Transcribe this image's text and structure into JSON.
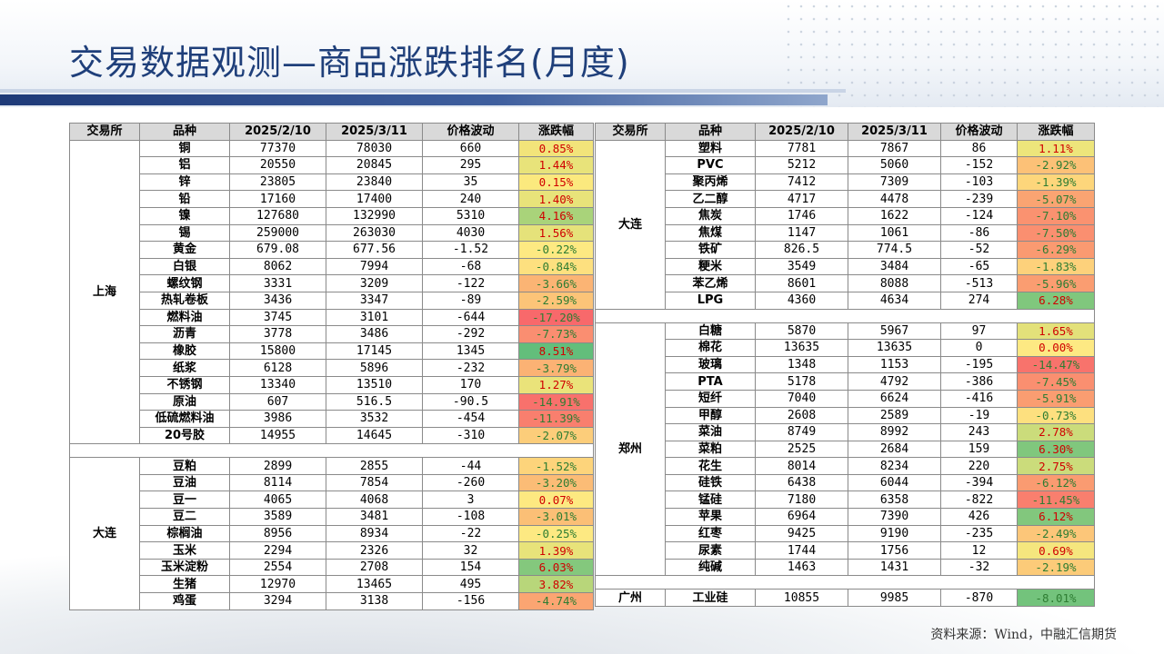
{
  "title": "交易数据观测—商品涨跌排名(月度)",
  "source": "资料来源：Wind，中融汇信期货",
  "headers": [
    "交易所",
    "品种",
    "2025/2/10",
    "2025/3/11",
    "价格波动",
    "涨跌幅"
  ],
  "left_groups": [
    {
      "exchange": "上海",
      "rows": [
        [
          "铜",
          "77370",
          "78030",
          "660",
          "0.85%",
          "#f2e47a"
        ],
        [
          "铝",
          "20550",
          "20845",
          "295",
          "1.44%",
          "#e8e37a"
        ],
        [
          "锌",
          "23805",
          "23840",
          "35",
          "0.15%",
          "#fbe97e"
        ],
        [
          "铅",
          "17160",
          "17400",
          "240",
          "1.40%",
          "#e8e37a"
        ],
        [
          "镍",
          "127680",
          "132990",
          "5310",
          "4.16%",
          "#a9d37a"
        ],
        [
          "锡",
          "259000",
          "263030",
          "4030",
          "1.56%",
          "#e5e27a"
        ],
        [
          "黄金",
          "679.08",
          "677.56",
          "-1.52",
          "-0.22%",
          "#fde982"
        ],
        [
          "白银",
          "8062",
          "7994",
          "-68",
          "-0.84%",
          "#fde07f"
        ],
        [
          "螺纹钢",
          "3331",
          "3209",
          "-122",
          "-3.66%",
          "#fbb474"
        ],
        [
          "热轧卷板",
          "3436",
          "3347",
          "-89",
          "-2.59%",
          "#fcc478"
        ],
        [
          "燃料油",
          "3745",
          "3101",
          "-644",
          "-17.20%",
          "#f8696b"
        ],
        [
          "沥青",
          "3778",
          "3486",
          "-292",
          "-7.73%",
          "#fa8e71"
        ],
        [
          "橡胶",
          "15800",
          "17145",
          "1345",
          "8.51%",
          "#63be7b"
        ],
        [
          "纸浆",
          "6128",
          "5896",
          "-232",
          "-3.79%",
          "#fbb274"
        ],
        [
          "不锈钢",
          "13340",
          "13510",
          "170",
          "1.27%",
          "#eae37a"
        ],
        [
          "原油",
          "607",
          "516.5",
          "-90.5",
          "-14.91%",
          "#f8716c"
        ],
        [
          "低硫燃料油",
          "3986",
          "3532",
          "-454",
          "-11.39%",
          "#f97f6e"
        ],
        [
          "20号胶",
          "14955",
          "14645",
          "-310",
          "-2.07%",
          "#fccd7a"
        ]
      ]
    },
    {
      "exchange": "大连",
      "rows": [
        [
          "豆粕",
          "2899",
          "2855",
          "-44",
          "-1.52%",
          "#fdd47b"
        ],
        [
          "豆油",
          "8114",
          "7854",
          "-260",
          "-3.20%",
          "#fbbc76"
        ],
        [
          "豆一",
          "4065",
          "4068",
          "3",
          "0.07%",
          "#fde981"
        ],
        [
          "豆二",
          "3589",
          "3481",
          "-108",
          "-3.01%",
          "#fbbf76"
        ],
        [
          "棕榈油",
          "8956",
          "8934",
          "-22",
          "-0.25%",
          "#fde982"
        ],
        [
          "玉米",
          "2294",
          "2326",
          "32",
          "1.39%",
          "#e8e37a"
        ],
        [
          "玉米淀粉",
          "2554",
          "2708",
          "154",
          "6.03%",
          "#84c87d"
        ],
        [
          "生猪",
          "12970",
          "13465",
          "495",
          "3.82%",
          "#b8d67a"
        ],
        [
          "鸡蛋",
          "3294",
          "3138",
          "-156",
          "-4.74%",
          "#fba572"
        ]
      ]
    }
  ],
  "right_groups": [
    {
      "exchange": "大连",
      "rows": [
        [
          "塑料",
          "7781",
          "7867",
          "86",
          "1.11%",
          "#ede57b"
        ],
        [
          "PVC",
          "5212",
          "5060",
          "-152",
          "-2.92%",
          "#fcc177"
        ],
        [
          "聚丙烯",
          "7412",
          "7309",
          "-103",
          "-1.39%",
          "#fdd67b"
        ],
        [
          "乙二醇",
          "4717",
          "4478",
          "-239",
          "-5.07%",
          "#faa472"
        ],
        [
          "焦炭",
          "1746",
          "1622",
          "-124",
          "-7.10%",
          "#fa9270"
        ],
        [
          "焦煤",
          "1147",
          "1061",
          "-86",
          "-7.50%",
          "#fa8f70"
        ],
        [
          "铁矿",
          "826.5",
          "774.5",
          "-52",
          "-6.29%",
          "#fa9a71"
        ],
        [
          "粳米",
          "3549",
          "3484",
          "-65",
          "-1.83%",
          "#fdd17b"
        ],
        [
          "苯乙烯",
          "8601",
          "8088",
          "-513",
          "-5.96%",
          "#fa9d71"
        ],
        [
          "LPG",
          "4360",
          "4634",
          "274",
          "6.28%",
          "#80c77d"
        ]
      ]
    },
    {
      "exchange": "郑州",
      "rows": [
        [
          "白糖",
          "5870",
          "5967",
          "97",
          "1.65%",
          "#e3e17a"
        ],
        [
          "棉花",
          "13635",
          "13635",
          "0",
          "0.00%",
          "#fde983"
        ],
        [
          "玻璃",
          "1348",
          "1153",
          "-195",
          "-14.47%",
          "#f8736c"
        ],
        [
          "PTA",
          "5178",
          "4792",
          "-386",
          "-7.45%",
          "#fa8f70"
        ],
        [
          "短纤",
          "7040",
          "6624",
          "-416",
          "-5.91%",
          "#fa9d71"
        ],
        [
          "甲醇",
          "2608",
          "2589",
          "-19",
          "-0.73%",
          "#fde07f"
        ],
        [
          "菜油",
          "8749",
          "8992",
          "243",
          "2.78%",
          "#cbdc7b"
        ],
        [
          "菜粕",
          "2525",
          "2684",
          "159",
          "6.30%",
          "#80c77d"
        ],
        [
          "花生",
          "8014",
          "8234",
          "220",
          "2.75%",
          "#cbdc7b"
        ],
        [
          "硅铁",
          "6438",
          "6044",
          "-394",
          "-6.12%",
          "#fa9b71"
        ],
        [
          "锰硅",
          "7180",
          "6358",
          "-822",
          "-11.45%",
          "#f97f6e"
        ],
        [
          "苹果",
          "6964",
          "7390",
          "426",
          "6.12%",
          "#82c77d"
        ],
        [
          "红枣",
          "9425",
          "9190",
          "-235",
          "-2.49%",
          "#fcc679"
        ],
        [
          "尿素",
          "1744",
          "1756",
          "12",
          "0.69%",
          "#f5e67e"
        ],
        [
          "纯碱",
          "1463",
          "1431",
          "-32",
          "-2.19%",
          "#fccb79"
        ]
      ]
    },
    {
      "exchange": "广州",
      "rows": [
        [
          "工业硅",
          "10855",
          "9985",
          "-870",
          "-8.01%",
          "#73c37c"
        ]
      ]
    }
  ]
}
